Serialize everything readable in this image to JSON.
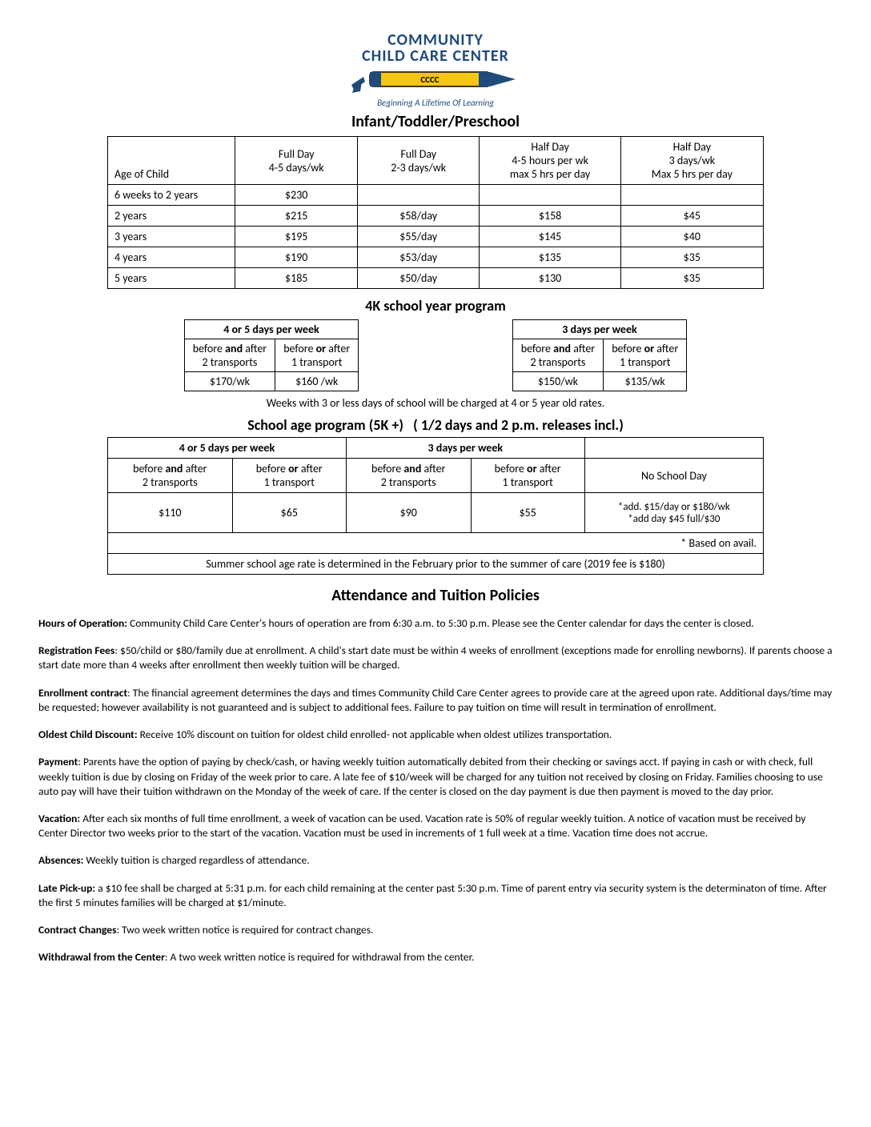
{
  "logo": {
    "line1": "COMMUNITY",
    "line2": "CHILD CARE CENTER",
    "crayon_label": "CCCC",
    "tagline": "Beginning A Lifetime Of Learning"
  },
  "section1_title": "Infant/Toddler/Preschool",
  "rates": {
    "headers": {
      "age": "Age of Child",
      "col1a": "Full Day",
      "col1b": "4-5 days/wk",
      "col2a": "Full Day",
      "col2b": "2-3 days/wk",
      "col3a": "Half Day",
      "col3b": "4-5 hours per wk",
      "col3c": "max  5 hrs per day",
      "col4a": "Half Day",
      "col4b": "3 days/wk",
      "col4c": "Max  5 hrs per day"
    },
    "rows": [
      {
        "age": "6 weeks to 2 years",
        "c1": "$230",
        "c2": "",
        "c3": "",
        "c4": ""
      },
      {
        "age": "2 years",
        "c1": "$215",
        "c2": "$58/day",
        "c3": "$158",
        "c4": "$45"
      },
      {
        "age": "3 years",
        "c1": "$195",
        "c2": "$55/day",
        "c3": "$145",
        "c4": "$40"
      },
      {
        "age": "4 years",
        "c1": "$190",
        "c2": "$53/day",
        "c3": "$135",
        "c4": "$35"
      },
      {
        "age": "5 years",
        "c1": "$185",
        "c2": "$50/day",
        "c3": "$130",
        "c4": "$35"
      }
    ]
  },
  "section2_title": "4K school year program",
  "fourk_left": {
    "header": "4 or 5 days per week",
    "sub": [
      {
        "a": "before",
        "b": "and",
        "c": "after",
        "d": "2 transports"
      },
      {
        "a": "before",
        "b": "or",
        "c": "after",
        "d": "1 transport"
      }
    ],
    "prices": [
      "$170/wk",
      "$160 /wk"
    ]
  },
  "fourk_right": {
    "header": "3 days per week",
    "sub": [
      {
        "a": "before",
        "b": "and",
        "c": "after",
        "d": "2 transports"
      },
      {
        "a": "before",
        "b": "or",
        "c": "after",
        "d": "1 transport"
      }
    ],
    "prices": [
      "$150/wk",
      "$135/wk"
    ]
  },
  "fourk_note": "Weeks with 3 or less days of school will be charged at 4 or 5 year old rates.",
  "schoolage_title_a": "School age program (5K +)",
  "schoolage_title_b": "( 1/2 days and 2 p.m. releases incl.)",
  "schoolage": {
    "h45": "4 or 5 days per week",
    "h3": "3 days per week",
    "sub": [
      {
        "a": "before",
        "b": "and",
        "c": "after",
        "d": "2 transports"
      },
      {
        "a": "before",
        "b": "or",
        "c": "after",
        "d": "1 transport"
      },
      {
        "a": "before",
        "b": "and",
        "c": "after",
        "d": "2 transports"
      },
      {
        "a": "before",
        "b": "or",
        "c": "after",
        "d": "1 transport"
      }
    ],
    "noschool": "No School Day",
    "prices": [
      "$110",
      "$65",
      "$90",
      "$55"
    ],
    "noschool_price_a": "*add. $15/day or $180/wk",
    "noschool_price_b": "*add day $45 full/$30",
    "avail": "* Based on avail.",
    "summer": "Summer school age rate is determined in the February prior to the summer of care (2019 fee is $180)"
  },
  "policies_title": "Attendance and Tuition Policies",
  "policies": [
    {
      "label": "Hours of Operation:",
      "text": " Community Child Care Center's hours of operation are from 6:30 a.m. to 5:30 p.m. Please see the Center calendar for days the center is closed."
    },
    {
      "label": "Registration Fees",
      "text": ": $50/child or $80/family due at enrollment. A child's start date must be within 4 weeks of enrollment (exceptions made for enrolling newborns). If parents choose a start date more than 4 weeks after enrollment then weekly tuition will be charged."
    },
    {
      "label": "Enrollment contract",
      "text": ": The financial agreement determines the days and times Community Child Care Center agrees to provide care at the agreed upon rate. Additional days/time may be requested; however availability is not guaranteed and is subject to additional fees. Failure to pay tuition on time will result in termination of enrollment."
    },
    {
      "label": "Oldest Child Discount:",
      "text": "  Receive 10% discount on tuition for oldest child enrolled- not applicable when oldest utilizes transportation."
    },
    {
      "label": "Payment",
      "text": ": Parents have the option of paying by check/cash, or having weekly tuition automatically debited from their checking or savings acct. If paying in cash or with check, full weekly tuition is due by closing on Friday of the week prior to care. A late fee of $10/week will be charged for any tuition not received by closing on Friday. Families choosing to use auto pay will have their tuition withdrawn on the Monday of the week of care. If the center is closed on the day payment is due then payment is moved to the day prior."
    },
    {
      "label": "Vacation:",
      "text": " After each six months of full time enrollment, a week of vacation can be used. Vacation rate is 50% of regular weekly tuition. A notice of vacation must be received by Center Director two weeks prior to the start of the vacation. Vacation must be used in increments of 1 full week at a time. Vacation time does not accrue."
    },
    {
      "label": "Absences:",
      "text": " Weekly tuition is charged regardless of attendance."
    },
    {
      "label": "Late Pick-up:",
      "text": " a $10 fee shall be charged at 5:31 p.m. for each child remaining at the center past 5:30 p.m. Time of parent entry via security system is the determinaton of time. After the first 5 minutes families will be charged at $1/minute."
    },
    {
      "label": "Contract Changes",
      "text": ": Two week written notice is required for contract changes."
    },
    {
      "label": "Withdrawal from the Center",
      "text": ": A two week written notice is required for withdrawal from the center."
    }
  ]
}
